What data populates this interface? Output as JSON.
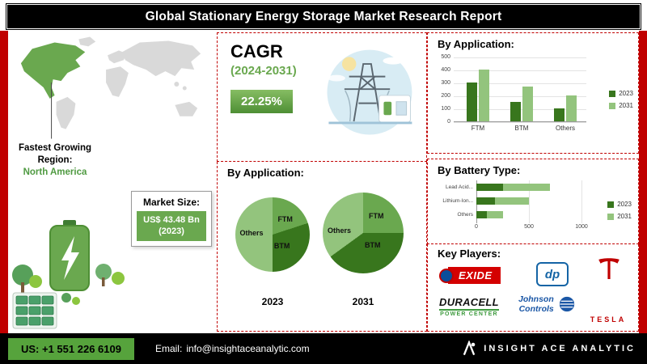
{
  "header": {
    "title": "Global Stationary Energy Storage Market Research Report"
  },
  "left": {
    "fastest_line1": "Fastest Growing",
    "fastest_line2": "Region:",
    "region": "North America",
    "market_size_label": "Market Size:",
    "market_size_value": "US$ 43.48 Bn",
    "market_size_year": "(2023)"
  },
  "cagr": {
    "label": "CAGR",
    "period": "(2024-2031)",
    "value": "22.25%"
  },
  "key_players": {
    "title": "Key Players:",
    "exide": "EXIDE",
    "dp": "dp",
    "duracell": "DURACELL",
    "duracell_sub": "POWER CENTER",
    "johnson_line1": "Johnson",
    "johnson_line2": "Controls",
    "tesla_word": "TESLA"
  },
  "footer": {
    "phone": "US: +1 551 226 6109",
    "email_label": "Email:",
    "email": "info@insightaceanalytic.com",
    "brand": "INSIGHT ACE ANALYTIC"
  },
  "colors": {
    "red": "#c00000",
    "green": "#6aa84f",
    "green_dark": "#38761d",
    "green_light": "#93c47d"
  },
  "chart_data": [
    {
      "type": "bar",
      "title": "By Application:",
      "categories": [
        "FTM",
        "BTM",
        "Others"
      ],
      "series": [
        {
          "name": "2023",
          "color": "#38761d",
          "values": [
            300,
            150,
            100
          ]
        },
        {
          "name": "2031",
          "color": "#93c47d",
          "values": [
            400,
            270,
            200
          ]
        }
      ],
      "ylim": [
        0,
        500
      ],
      "yticks": [
        0,
        100,
        200,
        300,
        400,
        500
      ],
      "grid": true,
      "legend_position": "right"
    },
    {
      "type": "pie",
      "title": "By Application:",
      "year": "2023",
      "labels": [
        "FTM",
        "BTM",
        "Others"
      ],
      "values": [
        20,
        30,
        50
      ],
      "colors": [
        "#6aa84f",
        "#38761d",
        "#93c47d"
      ]
    },
    {
      "type": "pie",
      "title": "By Application:",
      "year": "2031",
      "labels": [
        "FTM",
        "BTM",
        "Others"
      ],
      "values": [
        25,
        40,
        35
      ],
      "colors": [
        "#6aa84f",
        "#38761d",
        "#93c47d"
      ]
    },
    {
      "type": "bar",
      "orientation": "horizontal",
      "stacked": true,
      "title": "By Battery Type:",
      "categories": [
        "Lead Acid...",
        "Lithium-Ion...",
        "Others"
      ],
      "series": [
        {
          "name": "2023",
          "color": "#38761d",
          "values": [
            250,
            180,
            100
          ]
        },
        {
          "name": "2031",
          "color": "#93c47d",
          "values": [
            450,
            320,
            150
          ]
        }
      ],
      "xlim": [
        0,
        1000
      ],
      "xticks": [
        0,
        500,
        1000
      ],
      "grid": true,
      "legend_position": "right"
    }
  ]
}
